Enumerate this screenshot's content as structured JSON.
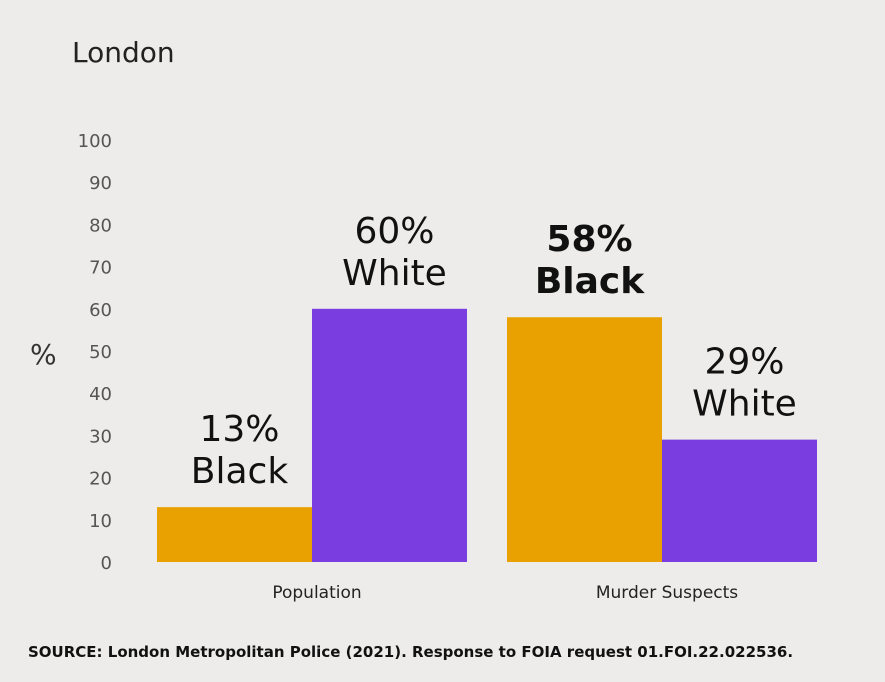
{
  "chart_data": {
    "type": "bar",
    "title": "London",
    "ylabel": "%",
    "ylim": [
      0,
      100
    ],
    "yticks": [
      0,
      10,
      20,
      30,
      40,
      50,
      60,
      70,
      80,
      90,
      100
    ],
    "categories": [
      "Population",
      "Murder Suspects"
    ],
    "series": [
      {
        "color": "#e8a100",
        "values": [
          13,
          58
        ],
        "labels": [
          [
            "13%",
            "Black"
          ],
          [
            "58%",
            "Black"
          ]
        ],
        "label_bold": [
          false,
          true
        ]
      },
      {
        "color": "#7a3ee0",
        "values": [
          60,
          29
        ],
        "labels": [
          [
            "60%",
            "White"
          ],
          [
            "29%",
            "White"
          ]
        ],
        "label_bold": [
          false,
          false
        ]
      }
    ],
    "grid": false,
    "legend": "none"
  },
  "source": "SOURCE: London Metropolitan Police (2021). Response to FOIA request 01.FOI.22.022536."
}
